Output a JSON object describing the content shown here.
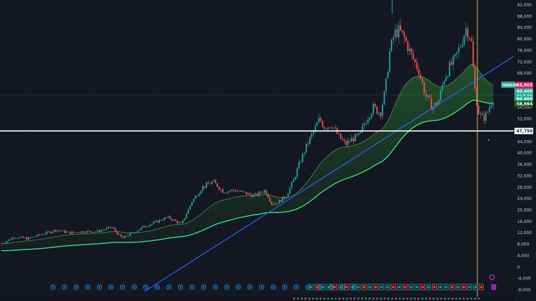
{
  "chart_data": {
    "type": "candlestick",
    "y_axis": {
      "ticks": [
        "92,000",
        "88,000",
        "84,000",
        "80,000",
        "76,000",
        "72,000",
        "68,000",
        "64,000",
        "60,000",
        "56,000",
        "52,000",
        "48,000",
        "44,000",
        "40,000",
        "36,000",
        "32,000",
        "28,000",
        "24,000",
        "20,000",
        "16,000",
        "12,000",
        "8,000",
        "4,000",
        "0",
        "-4,000",
        "-8,000"
      ],
      "ylim": [
        -10000,
        94000
      ],
      "position": "right"
    },
    "price_badges": [
      {
        "label": "63,903",
        "value": 63903,
        "color": "#d81b60"
      },
      {
        "label": "60,400",
        "value": 61700,
        "color": "#26a69a"
      },
      {
        "label": "32d 0h",
        "value": 60000,
        "color": "#26a69a"
      },
      {
        "label": "60,400",
        "value": 59000,
        "color": "#26a69a"
      },
      {
        "label": "58,664",
        "value": 57300,
        "color": "#1b5e20"
      },
      {
        "label": "47,750",
        "value": 47750,
        "color": "#ffffff"
      }
    ],
    "left_badge": {
      "label": "009930",
      "color": "#26a69a"
    },
    "horizontal_line": {
      "value": 47750,
      "color": "#ffffff"
    },
    "vertical_line": {
      "color": "#d4b45a"
    },
    "trend_line": {
      "color": "#2962ff",
      "from": [
        0.27,
        -8500
      ],
      "to": [
        0.963,
        74500
      ]
    },
    "candles": [],
    "ema_slow": [],
    "ema_fast": [],
    "markers_blue_count": 27,
    "markers_green_count": 30,
    "colors": {
      "up": "#26a69a",
      "down": "#ef5350",
      "ema_slow": "#4caf50",
      "ema_fast": "#66bb6a",
      "grid": "#1e2230"
    }
  }
}
